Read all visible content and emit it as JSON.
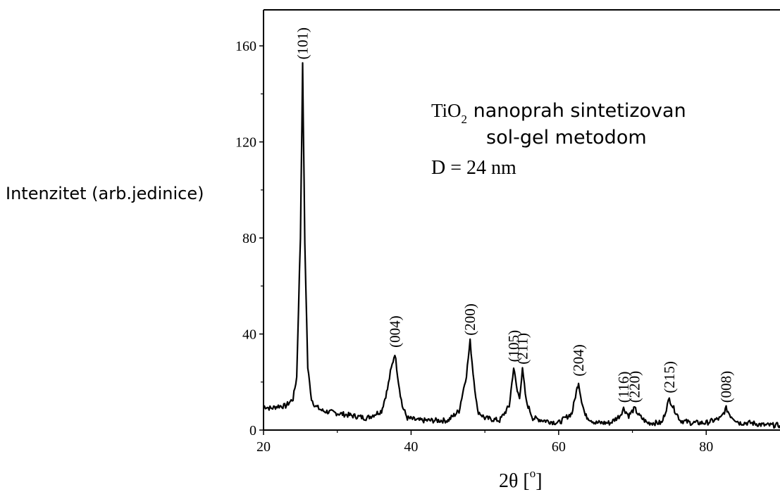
{
  "chart_data": {
    "type": "line",
    "ylabel": "Intenzitet (arb.jedinice)",
    "xlabel_main": "2θ [",
    "xlabel_sup": "o",
    "xlabel_end": "]",
    "xlim": [
      20,
      90
    ],
    "ylim": [
      0,
      175
    ],
    "x_ticks": [
      20,
      40,
      60,
      80
    ],
    "y_ticks": [
      0,
      40,
      80,
      120,
      160
    ],
    "annotation": {
      "line1_a": "TiO",
      "line1_sub": "2",
      "line1_b": " nanoprah sintetizovan",
      "line2": "sol-gel metodom",
      "line3": "D = 24 nm"
    },
    "peaks": [
      {
        "label": "(101)",
        "x": 25.3,
        "y": 152
      },
      {
        "label": "(004)",
        "x": 37.8,
        "y": 32
      },
      {
        "label": "(200)",
        "x": 48.0,
        "y": 37
      },
      {
        "label": "(105)",
        "x": 53.9,
        "y": 26
      },
      {
        "label": "(211)",
        "x": 55.1,
        "y": 25
      },
      {
        "label": "(204)",
        "x": 62.7,
        "y": 20
      },
      {
        "label": "(116)",
        "x": 68.8,
        "y": 9
      },
      {
        "label": "(220)",
        "x": 70.3,
        "y": 9
      },
      {
        "label": "(215)",
        "x": 75.0,
        "y": 13
      },
      {
        "label": "(008)",
        "x": 82.7,
        "y": 9
      }
    ],
    "series": [
      {
        "x": [
          20,
          21,
          22,
          23,
          24,
          24.5,
          25.0,
          25.3,
          25.6,
          26.0,
          26.5,
          27,
          28,
          30,
          32,
          34,
          36,
          36.8,
          37.2,
          37.8,
          38.3,
          38.8,
          39.5,
          41,
          43,
          45,
          46.5,
          47.5,
          48.0,
          48.4,
          49,
          50,
          52,
          53.3,
          53.9,
          54.4,
          54.7,
          55.1,
          55.6,
          56.5,
          58,
          60,
          61.8,
          62.4,
          62.7,
          63.0,
          63.6,
          65,
          67,
          68.3,
          68.8,
          69.5,
          70.3,
          70.9,
          72,
          74,
          74.6,
          75.0,
          75.6,
          76.5,
          78,
          80,
          82.0,
          82.7,
          83.3,
          84.5,
          86,
          88,
          90
        ],
        "y": [
          10,
          9,
          10,
          10,
          13,
          22,
          80,
          152,
          78,
          26,
          13,
          10,
          8,
          7,
          6,
          5,
          8,
          17,
          24,
          32,
          20,
          10,
          5,
          4,
          4,
          4,
          8,
          23,
          37,
          24,
          8,
          5,
          4,
          10,
          26,
          16,
          14,
          25,
          12,
          5,
          4,
          3,
          7,
          16,
          20,
          14,
          6,
          3,
          3,
          6,
          9,
          6,
          9,
          6,
          3,
          3,
          9,
          13,
          9,
          4,
          3,
          3,
          5,
          9,
          6,
          3,
          3,
          2,
          2
        ]
      }
    ]
  }
}
